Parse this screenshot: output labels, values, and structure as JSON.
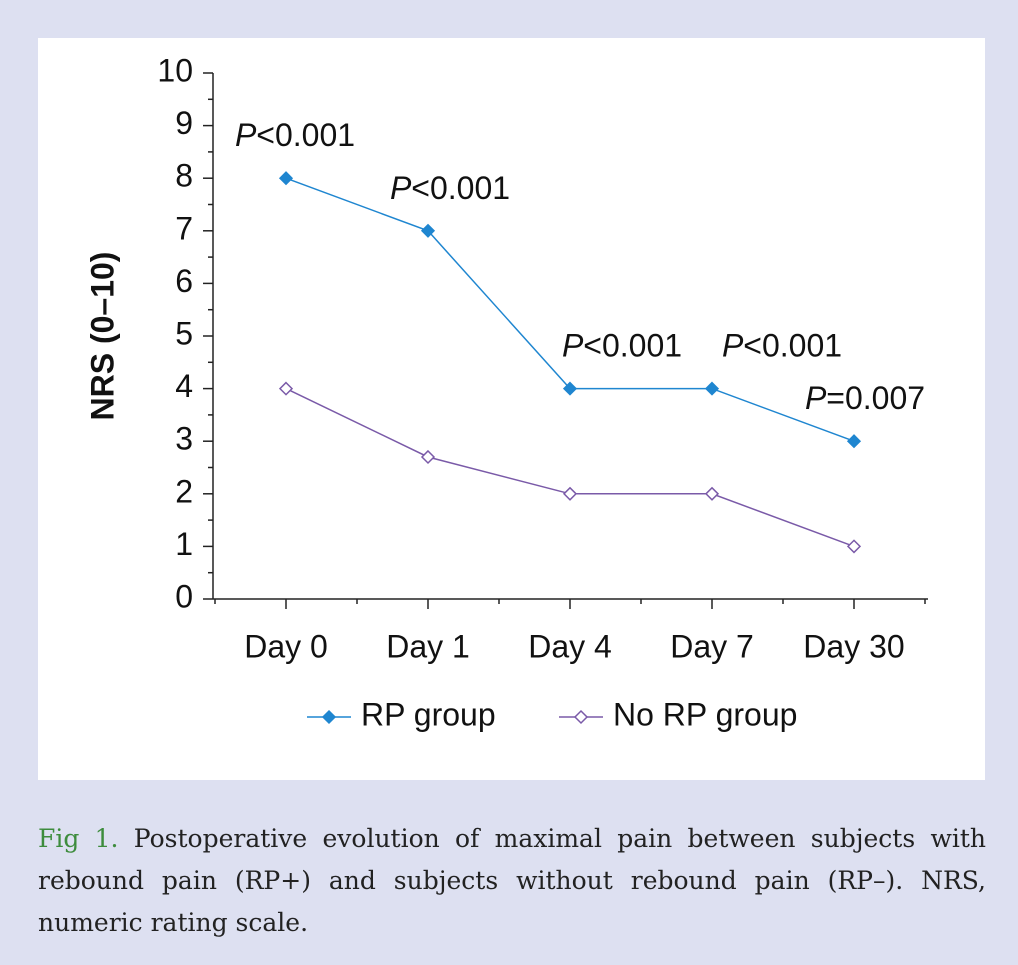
{
  "chart_data": {
    "type": "line",
    "ylabel": "NRS (0–10)",
    "categories": [
      "Day 0",
      "Day 1",
      "Day 4",
      "Day 7",
      "Day 30"
    ],
    "series": [
      {
        "name": "RP group",
        "color": "#1f86d0",
        "marker": "filled-diamond",
        "values": [
          8,
          7,
          4,
          4,
          3
        ]
      },
      {
        "name": "No RP group",
        "color": "#7a5aa8",
        "marker": "open-diamond",
        "values": [
          4,
          2.7,
          2,
          2,
          1
        ]
      }
    ],
    "annotations": [
      "P<0.001",
      "P<0.001",
      "P<0.001",
      "P<0.001",
      "P=0.007"
    ],
    "ylim": [
      0,
      10
    ],
    "yticks": [
      0,
      1,
      2,
      3,
      4,
      5,
      6,
      7,
      8,
      9,
      10
    ],
    "legend": "bottom"
  },
  "caption": {
    "label": "Fig 1.",
    "text": "Postoperative evolution of maximal pain between subjects with rebound pain (RP+) and subjects without rebound pain (RP–). NRS, numeric rating scale."
  }
}
